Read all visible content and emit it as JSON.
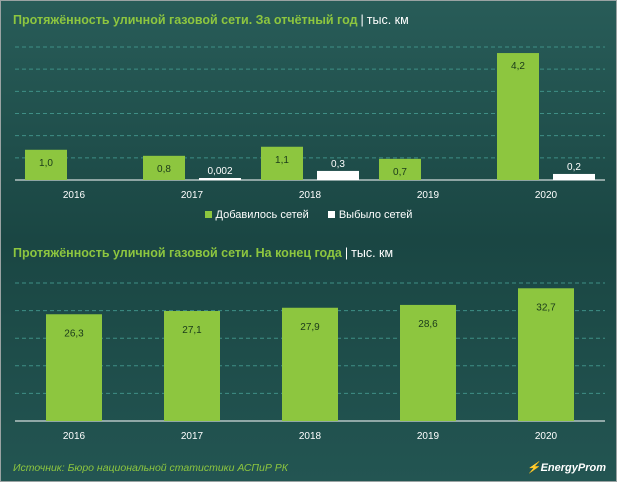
{
  "titles": {
    "top": "Протяжённость уличной газовой сети. За отчётный год",
    "top_unit": "тыс. км",
    "bottom": "Протяжённость уличной газовой сети. На конец года",
    "bottom_unit": "тыс. км",
    "separator": "|"
  },
  "source": "Источник: Бюро национальной  статистики АСПиР РК",
  "logo": "EnergyProm",
  "colors": {
    "green": "#8dc63f",
    "white": "#ffffff",
    "background": "#1f4e4b",
    "grid": "#3f8f86"
  },
  "chart_data": [
    {
      "type": "bar",
      "categories": [
        "2016",
        "2017",
        "2018",
        "2019",
        "2020"
      ],
      "series": [
        {
          "name": "Добавилось сетей",
          "values": [
            1.0,
            0.8,
            1.1,
            0.7,
            4.2
          ],
          "labels": [
            "1,0",
            "0,8",
            "1,1",
            "0,7",
            "4,2"
          ],
          "color": "#8dc63f"
        },
        {
          "name": "Выбыло сетей",
          "values": [
            null,
            0.002,
            0.3,
            null,
            0.2
          ],
          "labels": [
            "",
            "0,002",
            "0,3",
            "",
            "0,2"
          ],
          "color": "#ffffff"
        }
      ],
      "ylim": [
        0,
        4.4
      ],
      "grid": true,
      "legend": "bottom-center"
    },
    {
      "type": "bar",
      "categories": [
        "2016",
        "2017",
        "2018",
        "2019",
        "2020"
      ],
      "series": [
        {
          "name": "",
          "values": [
            26.3,
            27.1,
            27.9,
            28.6,
            32.7
          ],
          "labels": [
            "26,3",
            "27,1",
            "27,9",
            "28,6",
            "32,7"
          ],
          "color": "#8dc63f"
        }
      ],
      "ylim": [
        0,
        34
      ],
      "grid": true
    }
  ]
}
